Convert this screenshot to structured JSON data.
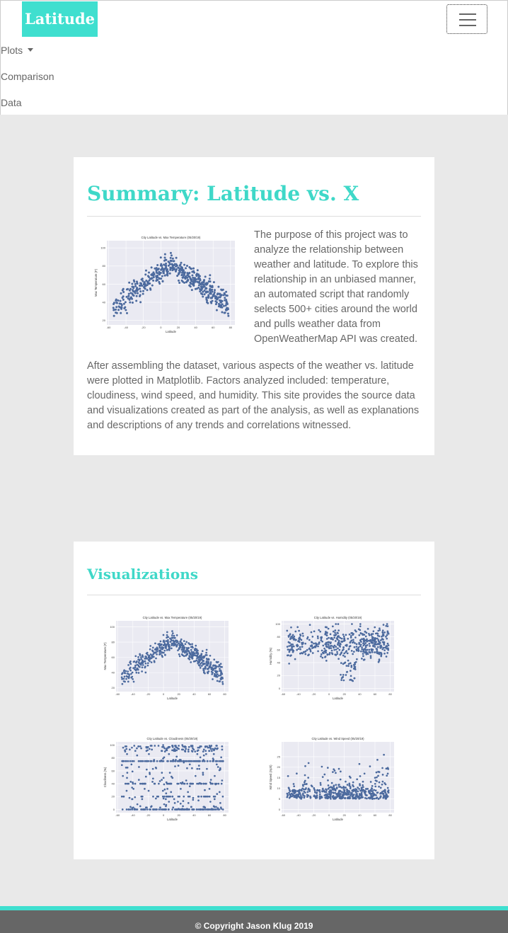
{
  "brand": "Latitude",
  "nav": {
    "plots": "Plots",
    "comparison": "Comparison",
    "data": "Data"
  },
  "summary": {
    "title": "Summary: Latitude vs. X",
    "paragraph1": "The purpose of this project was to analyze the relationship between weather and latitude. To explore this relationship in an unbiased manner, an automated script that randomly selects 500+ cities around the world and pulls weather data from OpenWeatherMap API was created.",
    "paragraph2": "After assembling the dataset, various aspects of the weather vs. latitude were plotted in Matplotlib. Factors analyzed included: temperature, cloudiness, wind speed, and humidity. This site provides the source data and visualizations created as part of the analysis, as well as explanations and descriptions of any trends and correlations witnessed."
  },
  "visualizations": {
    "title": "Visualizations"
  },
  "footer": "© Copyright Jason Klug 2019",
  "colors": {
    "accent": "#3fdfcf",
    "point": "#4c6a9e",
    "plot_background": "#eaeaf2",
    "footer": "#666666"
  },
  "chart_data": [
    {
      "type": "scatter",
      "title": "City Latitude vs. Max Temperature (05/20/19)",
      "xlabel": "Latitude",
      "ylabel": "Max Temperature (F)",
      "xlim": [
        -62,
        85
      ],
      "ylim": [
        15,
        108
      ],
      "xticks": [
        -60,
        -40,
        -20,
        0,
        20,
        40,
        60,
        80
      ],
      "yticks": [
        20,
        40,
        60,
        80,
        100
      ],
      "pattern": "temperature",
      "grid": true
    },
    {
      "type": "scatter",
      "title": "City Latitude vs. Humidity (05/20/19)",
      "xlabel": "Latitude",
      "ylabel": "Humidity (%)",
      "xlim": [
        -62,
        85
      ],
      "ylim": [
        -5,
        105
      ],
      "xticks": [
        -60,
        -40,
        -20,
        0,
        20,
        40,
        60,
        80
      ],
      "yticks": [
        0,
        20,
        40,
        60,
        80,
        100
      ],
      "pattern": "humidity",
      "grid": true
    },
    {
      "type": "scatter",
      "title": "City Latitude vs. Cloudiness (05/20/19)",
      "xlabel": "Latitude",
      "ylabel": "Cloudiness (%)",
      "xlim": [
        -62,
        85
      ],
      "ylim": [
        -5,
        105
      ],
      "xticks": [
        -60,
        -40,
        -20,
        0,
        20,
        40,
        60,
        80
      ],
      "yticks": [
        0,
        20,
        40,
        60,
        80,
        100
      ],
      "pattern": "cloudiness",
      "grid": true
    },
    {
      "type": "scatter",
      "title": "City Latitude vs. Wind Speed (05/20/19)",
      "xlabel": "Latitude",
      "ylabel": "Wind Speed (mph)",
      "xlim": [
        -62,
        85
      ],
      "ylim": [
        -1.5,
        32
      ],
      "xticks": [
        -60,
        -40,
        -20,
        0,
        20,
        40,
        60,
        80
      ],
      "yticks": [
        0,
        5,
        10,
        15,
        20,
        25
      ],
      "pattern": "wind",
      "grid": true
    }
  ]
}
